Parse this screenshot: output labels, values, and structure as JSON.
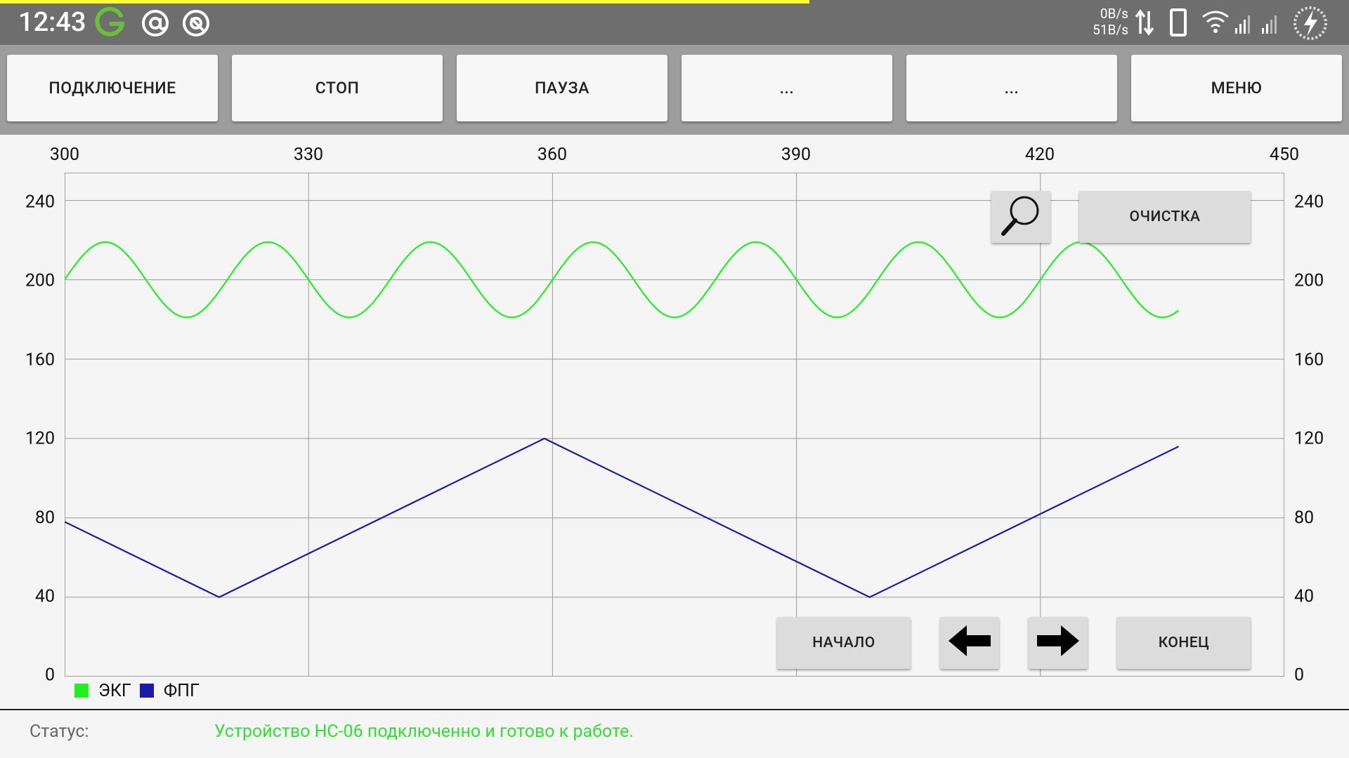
{
  "statusbar": {
    "time": "12:43",
    "net_up": "0B/s",
    "net_down": "51B/s",
    "icons": [
      "g-icon",
      "at-icon",
      "circle-q-icon",
      "data-arrows-icon",
      "phone-icon",
      "wifi-icon",
      "signal-icon",
      "signal-icon-2",
      "battery-charging-icon"
    ]
  },
  "toolbar": {
    "buttons": [
      {
        "label": "ПОДКЛЮЧЕНИЕ"
      },
      {
        "label": "СТОП"
      },
      {
        "label": "ПАУЗА"
      },
      {
        "label": "..."
      },
      {
        "label": "..."
      },
      {
        "label": "МЕНЮ"
      }
    ]
  },
  "chart_controls": {
    "zoom_icon": "search-icon",
    "clear_label": "ОЧИСТКА",
    "start_label": "НАЧАЛО",
    "end_label": "КОНЕЦ",
    "prev_icon": "arrow-left-icon",
    "next_icon": "arrow-right-icon"
  },
  "chart_data": {
    "type": "line",
    "x_ticks": [
      "300",
      "330",
      "360",
      "390",
      "420",
      "450"
    ],
    "y_ticks": [
      "0",
      "40",
      "80",
      "120",
      "160",
      "200",
      "240"
    ],
    "xlim": [
      300,
      450
    ],
    "ylim": [
      0,
      254
    ],
    "grid": true,
    "legend_position": "bottom-left",
    "series": [
      {
        "name": "ЭКГ",
        "color": "#22ee22",
        "shape": "sine",
        "x_start": 300,
        "x_end": 437,
        "center": 200,
        "amplitude": 19,
        "period": 20,
        "phase_start": 0
      },
      {
        "name": "ФПГ",
        "color": "#1a1aa8",
        "x": [
          300,
          319,
          359,
          399,
          437
        ],
        "y": [
          78,
          40,
          120,
          40,
          116
        ]
      }
    ]
  },
  "status": {
    "label": "Статус:",
    "value": "Устройство HC-06 подключенно и готово к работе."
  }
}
